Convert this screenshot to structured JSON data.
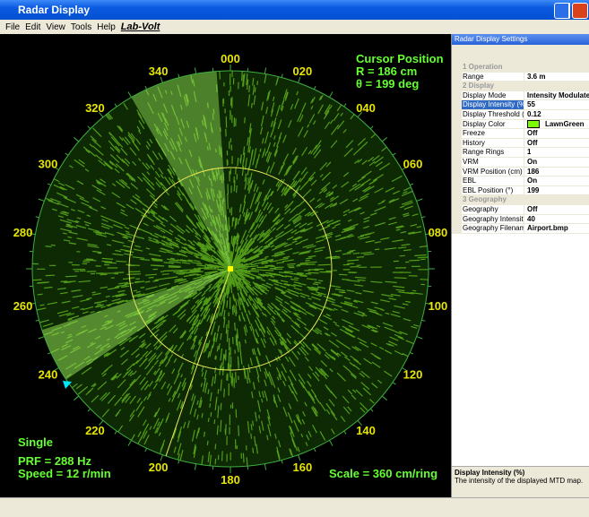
{
  "window": {
    "title": "Radar Display",
    "menu": [
      "File",
      "Edit",
      "View",
      "Tools",
      "Help"
    ],
    "logo": "Lab-Volt"
  },
  "radar": {
    "cursor_title": "Cursor Position",
    "cursor_r": "R =  186  cm",
    "cursor_theta": "θ =  199  deg",
    "bearings": [
      "000",
      "020",
      "040",
      "060",
      "080",
      "100",
      "120",
      "140",
      "160",
      "180",
      "200",
      "220",
      "240",
      "260",
      "280",
      "300",
      "320",
      "340"
    ],
    "mode": "Single",
    "prf": "PRF = 288  Hz",
    "speed": "Speed = 12    r/min",
    "scale": "Scale = 360  cm/ring"
  },
  "settings": {
    "title": "Radar Display Settings",
    "groups": [
      {
        "name": "1 Operation",
        "rows": [
          [
            "Range",
            "3.6 m"
          ]
        ]
      },
      {
        "name": "2 Display",
        "rows": [
          [
            "Display Mode",
            "Intensity Modulate"
          ],
          [
            "Display Intensity (%)",
            "55"
          ],
          [
            "Display Threshold (0-1.!",
            "0.12"
          ],
          [
            "Display Color",
            "LawnGreen"
          ],
          [
            "Freeze",
            "Off"
          ],
          [
            "History",
            "Off"
          ],
          [
            "Range Rings",
            "1"
          ],
          [
            "VRM",
            "On"
          ],
          [
            "VRM Position (cm)",
            "186"
          ],
          [
            "EBL",
            "On"
          ],
          [
            "EBL Position (°)",
            "199"
          ]
        ]
      },
      {
        "name": "3 Geography",
        "rows": [
          [
            "Geography",
            "Off"
          ],
          [
            "Geography Intensity (%)",
            "40"
          ],
          [
            "Geography Filename",
            "Airport.bmp"
          ]
        ]
      }
    ],
    "desc_title": "Display Intensity (%)",
    "desc_text": "The intensity of the displayed MTD map."
  }
}
